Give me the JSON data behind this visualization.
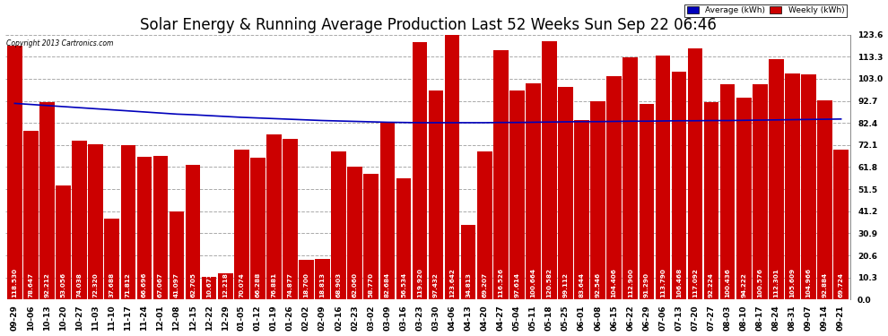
{
  "title": "Solar Energy & Running Average Production Last 52 Weeks Sun Sep 22 06:46",
  "copyright": "Copyright 2013 Cartronics.com",
  "ylim": [
    0,
    123.6
  ],
  "yticks": [
    0.0,
    10.3,
    20.6,
    30.9,
    41.2,
    51.5,
    61.8,
    72.1,
    82.4,
    92.7,
    103.0,
    113.3,
    123.6
  ],
  "bar_color": "#cc0000",
  "avg_color": "#0000bb",
  "bg_color": "#ffffff",
  "grid_color": "#aaaaaa",
  "categories": [
    "09-29",
    "10-06",
    "10-13",
    "10-20",
    "10-27",
    "11-03",
    "11-10",
    "11-17",
    "11-24",
    "12-01",
    "12-08",
    "12-15",
    "12-22",
    "12-29",
    "01-05",
    "01-12",
    "01-19",
    "01-26",
    "02-02",
    "02-09",
    "02-16",
    "02-23",
    "03-02",
    "03-09",
    "03-16",
    "03-23",
    "03-30",
    "04-06",
    "04-13",
    "04-20",
    "04-27",
    "05-04",
    "05-11",
    "05-18",
    "05-25",
    "06-01",
    "06-08",
    "06-15",
    "06-22",
    "06-29",
    "07-06",
    "07-13",
    "07-20",
    "07-27",
    "08-03",
    "08-10",
    "08-17",
    "08-24",
    "08-31",
    "09-07",
    "09-14",
    "09-21"
  ],
  "weekly_values": [
    118.53,
    78.647,
    92.212,
    53.056,
    74.038,
    72.32,
    37.688,
    71.812,
    66.696,
    67.067,
    41.097,
    62.705,
    10.671,
    12.218,
    70.074,
    66.288,
    76.881,
    74.877,
    18.7,
    18.813,
    68.903,
    62.06,
    58.77,
    82.684,
    56.534,
    119.92,
    97.432,
    123.642,
    34.813,
    69.207,
    116.526,
    97.614,
    100.664,
    120.582,
    99.112,
    83.644,
    92.546,
    104.406,
    112.9,
    91.29,
    113.79,
    106.468,
    117.092,
    92.224,
    100.436,
    94.222,
    100.576,
    112.301,
    105.609,
    104.966,
    92.884,
    69.724
  ],
  "avg_values": [
    91.5,
    91.0,
    90.5,
    90.0,
    89.5,
    89.0,
    88.5,
    88.0,
    87.5,
    87.0,
    86.5,
    86.2,
    85.8,
    85.4,
    85.0,
    84.7,
    84.4,
    84.1,
    83.8,
    83.5,
    83.3,
    83.1,
    82.9,
    82.7,
    82.6,
    82.5,
    82.5,
    82.5,
    82.5,
    82.5,
    82.6,
    82.6,
    82.7,
    82.8,
    82.9,
    83.0,
    83.0,
    83.1,
    83.2,
    83.2,
    83.3,
    83.4,
    83.4,
    83.5,
    83.5,
    83.6,
    83.7,
    83.8,
    83.9,
    84.0,
    84.1,
    84.2
  ],
  "legend_avg_label": "Average (kWh)",
  "legend_weekly_label": "Weekly (kWh)",
  "legend_avg_color": "#0000bb",
  "legend_weekly_color": "#cc0000",
  "title_fontsize": 12,
  "tick_fontsize": 6.5,
  "bar_value_fontsize": 5.2
}
